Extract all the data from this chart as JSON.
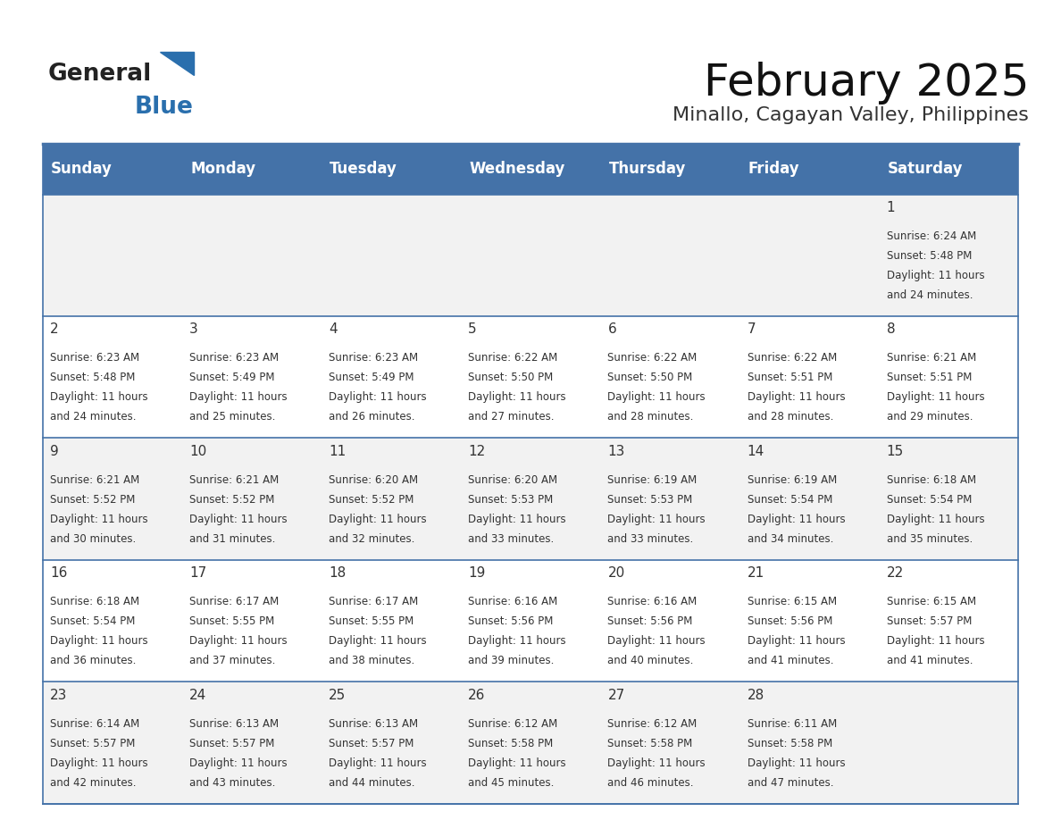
{
  "title": "February 2025",
  "subtitle": "Minallo, Cagayan Valley, Philippines",
  "header_color": "#4472a8",
  "header_text_color": "#ffffff",
  "day_names": [
    "Sunday",
    "Monday",
    "Tuesday",
    "Wednesday",
    "Thursday",
    "Friday",
    "Saturday"
  ],
  "alt_row_color": "#f2f2f2",
  "white_row_color": "#ffffff",
  "border_color": "#4472a8",
  "text_color": "#333333",
  "day_num_color": "#333333",
  "calendar_data": [
    [
      {
        "day": "",
        "sunrise": "",
        "sunset": "",
        "daylight": ""
      },
      {
        "day": "",
        "sunrise": "",
        "sunset": "",
        "daylight": ""
      },
      {
        "day": "",
        "sunrise": "",
        "sunset": "",
        "daylight": ""
      },
      {
        "day": "",
        "sunrise": "",
        "sunset": "",
        "daylight": ""
      },
      {
        "day": "",
        "sunrise": "",
        "sunset": "",
        "daylight": ""
      },
      {
        "day": "",
        "sunrise": "",
        "sunset": "",
        "daylight": ""
      },
      {
        "day": "1",
        "sunrise": "6:24 AM",
        "sunset": "5:48 PM",
        "daylight": "11 hours and 24 minutes."
      }
    ],
    [
      {
        "day": "2",
        "sunrise": "6:23 AM",
        "sunset": "5:48 PM",
        "daylight": "11 hours and 24 minutes."
      },
      {
        "day": "3",
        "sunrise": "6:23 AM",
        "sunset": "5:49 PM",
        "daylight": "11 hours and 25 minutes."
      },
      {
        "day": "4",
        "sunrise": "6:23 AM",
        "sunset": "5:49 PM",
        "daylight": "11 hours and 26 minutes."
      },
      {
        "day": "5",
        "sunrise": "6:22 AM",
        "sunset": "5:50 PM",
        "daylight": "11 hours and 27 minutes."
      },
      {
        "day": "6",
        "sunrise": "6:22 AM",
        "sunset": "5:50 PM",
        "daylight": "11 hours and 28 minutes."
      },
      {
        "day": "7",
        "sunrise": "6:22 AM",
        "sunset": "5:51 PM",
        "daylight": "11 hours and 28 minutes."
      },
      {
        "day": "8",
        "sunrise": "6:21 AM",
        "sunset": "5:51 PM",
        "daylight": "11 hours and 29 minutes."
      }
    ],
    [
      {
        "day": "9",
        "sunrise": "6:21 AM",
        "sunset": "5:52 PM",
        "daylight": "11 hours and 30 minutes."
      },
      {
        "day": "10",
        "sunrise": "6:21 AM",
        "sunset": "5:52 PM",
        "daylight": "11 hours and 31 minutes."
      },
      {
        "day": "11",
        "sunrise": "6:20 AM",
        "sunset": "5:52 PM",
        "daylight": "11 hours and 32 minutes."
      },
      {
        "day": "12",
        "sunrise": "6:20 AM",
        "sunset": "5:53 PM",
        "daylight": "11 hours and 33 minutes."
      },
      {
        "day": "13",
        "sunrise": "6:19 AM",
        "sunset": "5:53 PM",
        "daylight": "11 hours and 33 minutes."
      },
      {
        "day": "14",
        "sunrise": "6:19 AM",
        "sunset": "5:54 PM",
        "daylight": "11 hours and 34 minutes."
      },
      {
        "day": "15",
        "sunrise": "6:18 AM",
        "sunset": "5:54 PM",
        "daylight": "11 hours and 35 minutes."
      }
    ],
    [
      {
        "day": "16",
        "sunrise": "6:18 AM",
        "sunset": "5:54 PM",
        "daylight": "11 hours and 36 minutes."
      },
      {
        "day": "17",
        "sunrise": "6:17 AM",
        "sunset": "5:55 PM",
        "daylight": "11 hours and 37 minutes."
      },
      {
        "day": "18",
        "sunrise": "6:17 AM",
        "sunset": "5:55 PM",
        "daylight": "11 hours and 38 minutes."
      },
      {
        "day": "19",
        "sunrise": "6:16 AM",
        "sunset": "5:56 PM",
        "daylight": "11 hours and 39 minutes."
      },
      {
        "day": "20",
        "sunrise": "6:16 AM",
        "sunset": "5:56 PM",
        "daylight": "11 hours and 40 minutes."
      },
      {
        "day": "21",
        "sunrise": "6:15 AM",
        "sunset": "5:56 PM",
        "daylight": "11 hours and 41 minutes."
      },
      {
        "day": "22",
        "sunrise": "6:15 AM",
        "sunset": "5:57 PM",
        "daylight": "11 hours and 41 minutes."
      }
    ],
    [
      {
        "day": "23",
        "sunrise": "6:14 AM",
        "sunset": "5:57 PM",
        "daylight": "11 hours and 42 minutes."
      },
      {
        "day": "24",
        "sunrise": "6:13 AM",
        "sunset": "5:57 PM",
        "daylight": "11 hours and 43 minutes."
      },
      {
        "day": "25",
        "sunrise": "6:13 AM",
        "sunset": "5:57 PM",
        "daylight": "11 hours and 44 minutes."
      },
      {
        "day": "26",
        "sunrise": "6:12 AM",
        "sunset": "5:58 PM",
        "daylight": "11 hours and 45 minutes."
      },
      {
        "day": "27",
        "sunrise": "6:12 AM",
        "sunset": "5:58 PM",
        "daylight": "11 hours and 46 minutes."
      },
      {
        "day": "28",
        "sunrise": "6:11 AM",
        "sunset": "5:58 PM",
        "daylight": "11 hours and 47 minutes."
      },
      {
        "day": "",
        "sunrise": "",
        "sunset": "",
        "daylight": ""
      }
    ]
  ]
}
